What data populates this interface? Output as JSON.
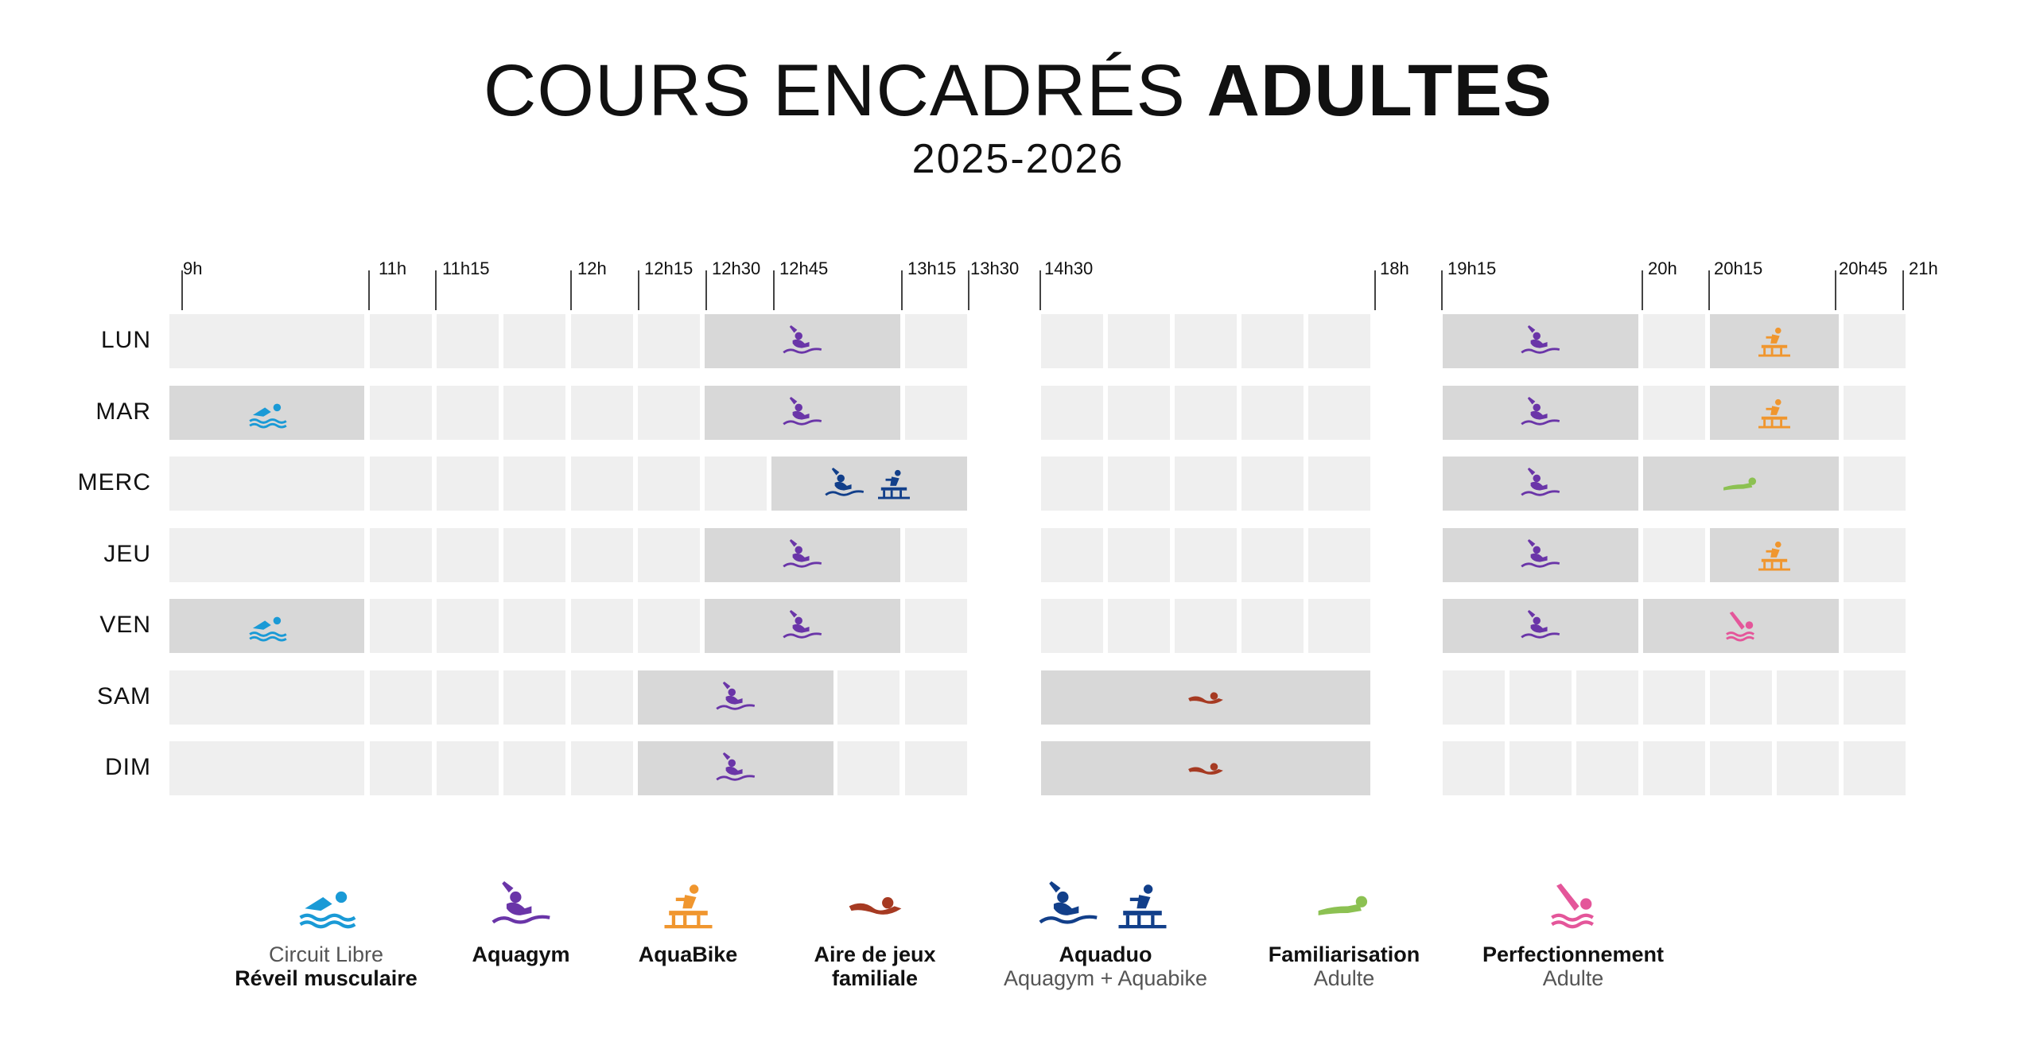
{
  "title": {
    "light": "COURS ENCADRÉS",
    "bold": "ADULTES"
  },
  "subtitle": "2025-2026",
  "times": [
    "9h",
    "11h",
    "11h15",
    "12h",
    "12h15",
    "12h30",
    "12h45",
    "13h15",
    "13h30",
    "14h30",
    "18h",
    "19h15",
    "20h",
    "20h15",
    "20h45",
    "21h"
  ],
  "days": [
    "LUN",
    "MAR",
    "MERC",
    "JEU",
    "VEN",
    "SAM",
    "DIM"
  ],
  "colors": {
    "circuit": "#1a9ad6",
    "aquagym": "#6a35a8",
    "aquabike": "#f0962e",
    "aire": "#a63a22",
    "aquaduo": "#123f8a",
    "familiarisation": "#8cc152",
    "perfectionnement": "#e4569a",
    "cell": "#efefef",
    "block": "#d8d8d8"
  },
  "legend": [
    {
      "key": "circuit",
      "icons": [
        "swimmer-icon"
      ],
      "line1": "Circuit Libre",
      "line2": "Réveil musculaire"
    },
    {
      "key": "aquagym",
      "icons": [
        "aquagym-icon"
      ],
      "line1": "Aquagym",
      "line2": ""
    },
    {
      "key": "aquabike",
      "icons": [
        "aquabike-icon"
      ],
      "line1": "AquaBike",
      "line2": ""
    },
    {
      "key": "aire",
      "icons": [
        "floating-swimmer-icon"
      ],
      "line1": "Aire de jeux",
      "line2": "familiale"
    },
    {
      "key": "aquaduo",
      "icons": [
        "aquagym-icon",
        "aquabike-icon"
      ],
      "line1": "Aquaduo",
      "line2": "Aquagym + Aquabike"
    },
    {
      "key": "familiarisation",
      "icons": [
        "gliding-swimmer-icon"
      ],
      "line1": "Familiarisation",
      "line2": "Adulte"
    },
    {
      "key": "perfectionnement",
      "icons": [
        "diver-icon"
      ],
      "line1": "Perfectionnement",
      "line2": "Adulte"
    }
  ],
  "schedule": [
    {
      "day": "LUN",
      "activities": [
        "aquagym",
        "aquagym",
        "aquabike"
      ]
    },
    {
      "day": "MAR",
      "activities": [
        "circuit",
        "aquagym",
        "aquagym",
        "aquabike"
      ]
    },
    {
      "day": "MERC",
      "activities": [
        "aquaduo",
        "aquagym",
        "familiarisation"
      ]
    },
    {
      "day": "JEU",
      "activities": [
        "aquagym",
        "aquagym",
        "aquabike"
      ]
    },
    {
      "day": "VEN",
      "activities": [
        "circuit",
        "aquagym",
        "aquagym",
        "perfectionnement"
      ]
    },
    {
      "day": "SAM",
      "activities": [
        "aquagym",
        "aire"
      ]
    },
    {
      "day": "DIM",
      "activities": [
        "aquagym",
        "aire"
      ]
    }
  ]
}
